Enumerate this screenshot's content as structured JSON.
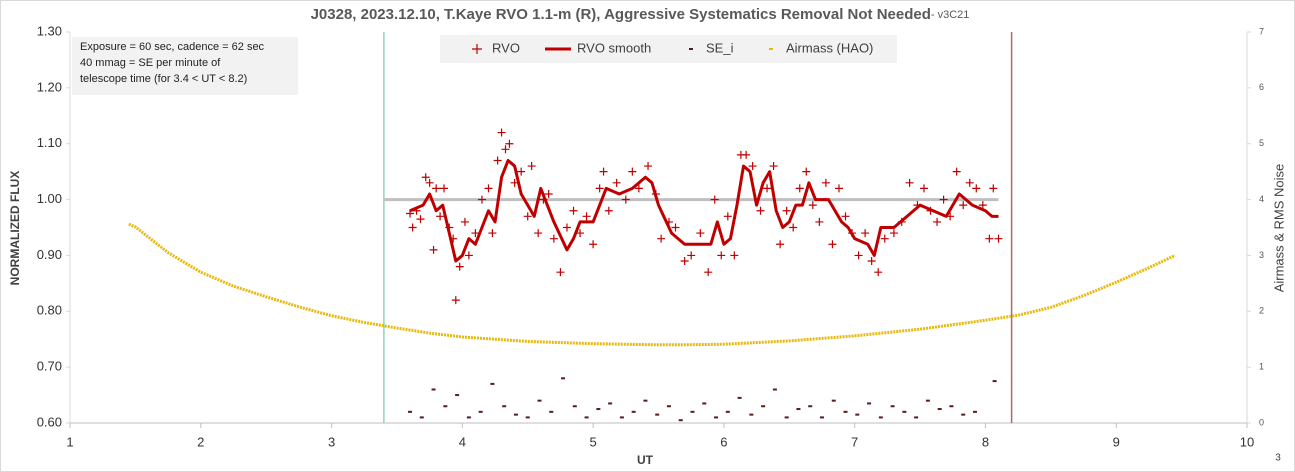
{
  "chart_data": {
    "type": "scatter",
    "title": "J0328, 2023.12.10, T.Kaye RVO 1.1-m (R), Aggressive Systematics Removal Not Needed",
    "title_suffix": "- v3C21",
    "xlabel": "UT",
    "ylabel": "NORMALIZED FLUX",
    "y2label": "Airmass & RMS Noise",
    "corner_note": "3",
    "annotation": [
      "Exposure = 60 sec, cadence = 62 sec",
      "40 mmag = SE per minute of",
      "telescope time  (for 3.4 < UT < 8.2)"
    ],
    "xlim": [
      1,
      10
    ],
    "xticks": [
      1,
      2,
      3,
      4,
      5,
      6,
      7,
      8,
      9,
      10
    ],
    "ylim": [
      0.6,
      1.3
    ],
    "yticks": [
      {
        "value": 0.6,
        "label": "0.60"
      },
      {
        "value": 0.7,
        "label": "0.70"
      },
      {
        "value": 0.8,
        "label": "0.80"
      },
      {
        "value": 0.9,
        "label": "0.90"
      },
      {
        "value": 1.0,
        "label": "1.00"
      },
      {
        "value": 1.1,
        "label": "1.10"
      },
      {
        "value": 1.2,
        "label": "1.20"
      },
      {
        "value": 1.3,
        "label": "1.30"
      }
    ],
    "y2lim": [
      0,
      7
    ],
    "y2ticks": [
      0,
      1,
      2,
      3,
      4,
      5,
      6,
      7
    ],
    "legend": "top",
    "vlines": [
      {
        "x": 3.4,
        "color": "#8fd4b8"
      },
      {
        "x": 8.2,
        "color": "#a86a6a"
      }
    ],
    "hline": {
      "y": 1.0,
      "from": 3.4,
      "to": 8.1,
      "color": "#bfbfbf"
    },
    "series": [
      {
        "name": "RVO",
        "color": "#c00000",
        "marker": "plus",
        "x": [
          3.6,
          3.62,
          3.65,
          3.68,
          3.72,
          3.75,
          3.78,
          3.8,
          3.83,
          3.86,
          3.9,
          3.93,
          3.95,
          3.98,
          4.02,
          4.05,
          4.1,
          4.15,
          4.2,
          4.23,
          4.27,
          4.3,
          4.33,
          4.36,
          4.4,
          4.45,
          4.5,
          4.53,
          4.58,
          4.62,
          4.66,
          4.7,
          4.75,
          4.8,
          4.85,
          4.9,
          4.95,
          5.0,
          5.05,
          5.08,
          5.12,
          5.18,
          5.25,
          5.3,
          5.35,
          5.42,
          5.48,
          5.52,
          5.58,
          5.63,
          5.7,
          5.75,
          5.82,
          5.88,
          5.93,
          5.98,
          6.03,
          6.08,
          6.13,
          6.17,
          6.22,
          6.28,
          6.33,
          6.38,
          6.43,
          6.48,
          6.53,
          6.58,
          6.63,
          6.68,
          6.73,
          6.78,
          6.83,
          6.88,
          6.93,
          6.98,
          7.03,
          7.08,
          7.13,
          7.18,
          7.23,
          7.3,
          7.36,
          7.42,
          7.48,
          7.53,
          7.58,
          7.63,
          7.68,
          7.73,
          7.78,
          7.83,
          7.88,
          7.93,
          7.98,
          8.03,
          8.06,
          8.1
        ],
        "values": [
          0.975,
          0.95,
          0.98,
          0.965,
          1.04,
          1.03,
          0.91,
          1.02,
          0.97,
          1.02,
          0.95,
          0.93,
          0.82,
          0.88,
          0.96,
          0.9,
          0.94,
          1.0,
          1.02,
          0.94,
          1.07,
          1.12,
          1.09,
          1.1,
          1.03,
          1.05,
          0.97,
          1.06,
          0.94,
          1.0,
          1.01,
          0.93,
          0.87,
          0.95,
          0.98,
          0.94,
          0.97,
          0.92,
          1.02,
          1.05,
          0.98,
          1.03,
          1.0,
          1.05,
          1.02,
          1.06,
          1.01,
          0.93,
          0.96,
          0.95,
          0.89,
          0.9,
          0.94,
          0.87,
          1.0,
          0.9,
          0.97,
          0.9,
          1.08,
          1.08,
          1.06,
          0.98,
          1.02,
          1.06,
          0.92,
          0.98,
          0.95,
          1.02,
          1.05,
          0.99,
          0.96,
          1.03,
          0.92,
          1.02,
          0.97,
          0.94,
          0.9,
          0.94,
          0.89,
          0.87,
          0.93,
          0.94,
          0.96,
          1.03,
          0.99,
          1.02,
          0.98,
          0.96,
          1.0,
          0.97,
          1.05,
          0.99,
          1.03,
          1.02,
          0.99,
          0.93,
          1.02,
          0.93
        ]
      },
      {
        "name": "RVO smooth",
        "color": "#c00000",
        "marker": "line",
        "x": [
          3.6,
          3.7,
          3.75,
          3.8,
          3.85,
          3.9,
          3.95,
          4.0,
          4.05,
          4.1,
          4.2,
          4.25,
          4.3,
          4.35,
          4.4,
          4.45,
          4.5,
          4.55,
          4.6,
          4.65,
          4.7,
          4.8,
          4.85,
          4.9,
          5.0,
          5.05,
          5.1,
          5.2,
          5.3,
          5.4,
          5.45,
          5.5,
          5.6,
          5.7,
          5.8,
          5.9,
          5.95,
          6.0,
          6.05,
          6.1,
          6.15,
          6.2,
          6.25,
          6.3,
          6.35,
          6.4,
          6.45,
          6.5,
          6.55,
          6.6,
          6.65,
          6.7,
          6.8,
          6.9,
          6.95,
          7.0,
          7.1,
          7.15,
          7.2,
          7.3,
          7.4,
          7.5,
          7.6,
          7.7,
          7.8,
          7.9,
          8.0,
          8.05,
          8.1
        ],
        "values": [
          0.98,
          0.99,
          1.01,
          0.98,
          0.99,
          0.94,
          0.89,
          0.9,
          0.93,
          0.92,
          0.98,
          0.96,
          1.04,
          1.07,
          1.06,
          1.01,
          0.99,
          0.97,
          1.02,
          0.99,
          0.96,
          0.91,
          0.93,
          0.96,
          0.96,
          0.99,
          1.02,
          1.01,
          1.02,
          1.04,
          1.03,
          0.99,
          0.94,
          0.92,
          0.92,
          0.92,
          0.96,
          0.92,
          0.93,
          0.99,
          1.06,
          1.05,
          0.99,
          1.03,
          1.05,
          0.98,
          0.95,
          0.96,
          0.99,
          0.99,
          1.03,
          1.0,
          1.0,
          0.96,
          0.95,
          0.93,
          0.92,
          0.9,
          0.95,
          0.95,
          0.97,
          0.99,
          0.98,
          0.97,
          1.01,
          0.99,
          0.98,
          0.97,
          0.97
        ]
      },
      {
        "name": "SE_i",
        "color": "#5a1a1a",
        "marker": "dash",
        "axis": "y2",
        "x": [
          3.6,
          3.69,
          3.78,
          3.87,
          3.96,
          4.05,
          4.14,
          4.23,
          4.32,
          4.41,
          4.5,
          4.59,
          4.68,
          4.77,
          4.86,
          4.95,
          5.04,
          5.13,
          5.22,
          5.31,
          5.4,
          5.49,
          5.58,
          5.67,
          5.76,
          5.85,
          5.94,
          6.03,
          6.12,
          6.21,
          6.3,
          6.39,
          6.48,
          6.57,
          6.66,
          6.75,
          6.84,
          6.93,
          7.02,
          7.11,
          7.2,
          7.29,
          7.38,
          7.47,
          7.56,
          7.65,
          7.74,
          7.83,
          7.92,
          8.07
        ],
        "values": [
          0.2,
          0.1,
          0.6,
          0.3,
          0.5,
          0.1,
          0.2,
          0.7,
          0.3,
          0.15,
          0.1,
          0.4,
          0.2,
          0.8,
          0.3,
          0.1,
          0.25,
          0.35,
          0.1,
          0.2,
          0.4,
          0.15,
          0.3,
          0.05,
          0.2,
          0.35,
          0.1,
          0.2,
          0.45,
          0.15,
          0.3,
          0.6,
          0.1,
          0.25,
          0.3,
          0.1,
          0.4,
          0.2,
          0.15,
          0.35,
          0.1,
          0.3,
          0.2,
          0.1,
          0.4,
          0.25,
          0.3,
          0.15,
          0.2,
          0.75
        ]
      },
      {
        "name": "Airmass (HAO)",
        "color": "#e8b80c",
        "marker": "dots",
        "axis": "y2",
        "x": [
          1.45,
          1.5,
          1.75,
          2,
          2.25,
          2.5,
          2.75,
          3,
          3.25,
          3.5,
          3.75,
          4,
          4.5,
          5,
          5.5,
          5.7,
          6,
          6.5,
          7,
          7.5,
          8,
          8.25,
          8.5,
          8.75,
          9,
          9.25,
          9.45
        ],
        "values": [
          3.56,
          3.51,
          3.05,
          2.7,
          2.45,
          2.26,
          2.08,
          1.92,
          1.8,
          1.7,
          1.61,
          1.54,
          1.46,
          1.42,
          1.4,
          1.4,
          1.41,
          1.47,
          1.56,
          1.68,
          1.84,
          1.93,
          2.07,
          2.28,
          2.52,
          2.78,
          3.0
        ]
      }
    ]
  }
}
